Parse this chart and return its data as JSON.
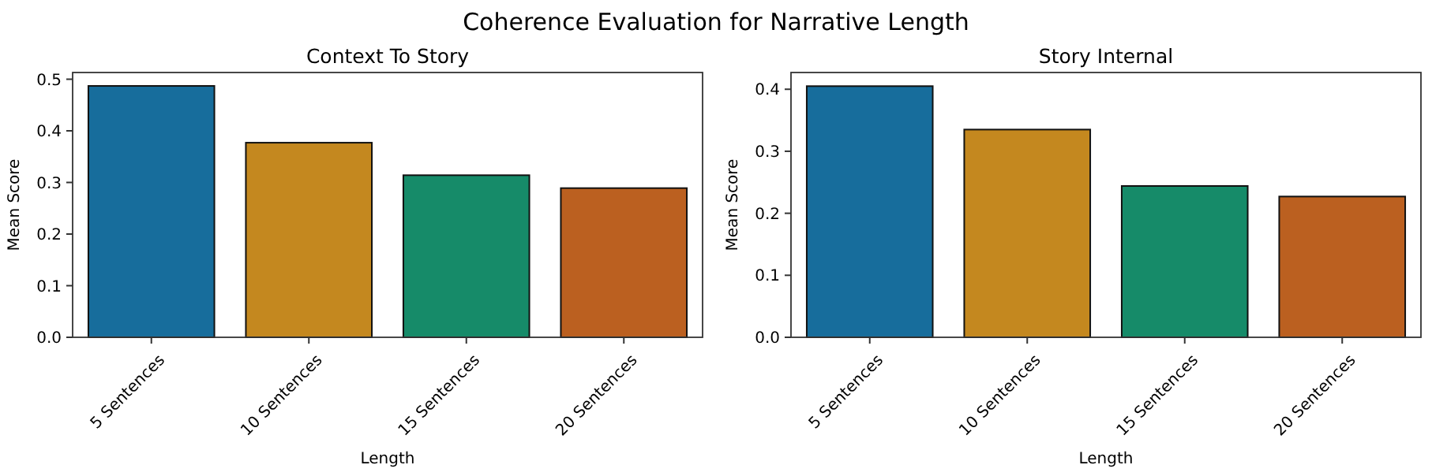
{
  "chart_data": [
    {
      "type": "bar",
      "title": "Context To Story",
      "annotations": [
        "Coherence Evaluation for Narrative Length"
      ],
      "xlabel": "Length",
      "ylabel": "Mean Score",
      "categories": [
        "5 Sentences",
        "10 Sentences",
        "15 Sentences",
        "20 Sentences"
      ],
      "values": [
        0.487,
        0.377,
        0.314,
        0.289
      ],
      "colors": [
        "#176d9c",
        "#c4881f",
        "#168b69",
        "#bb6020"
      ],
      "ylim": [
        0,
        0.513
      ],
      "yticks": [
        {
          "value": 0,
          "label": "0.0"
        },
        0.1,
        0.2,
        0.3,
        0.4,
        0.5
      ],
      "grid": false
    },
    {
      "type": "bar",
      "title": "Story Internal",
      "xlabel": "Length",
      "ylabel": "Mean Score",
      "categories": [
        "5 Sentences",
        "10 Sentences",
        "15 Sentences",
        "20 Sentences"
      ],
      "values": [
        0.405,
        0.335,
        0.244,
        0.227
      ],
      "colors": [
        "#176d9c",
        "#c4881f",
        "#168b69",
        "#bb6020"
      ],
      "ylim": [
        0,
        0.427
      ],
      "yticks": [
        {
          "value": 0,
          "label": "0.0"
        },
        0.1,
        0.2,
        0.3,
        0.4
      ],
      "grid": false
    }
  ]
}
